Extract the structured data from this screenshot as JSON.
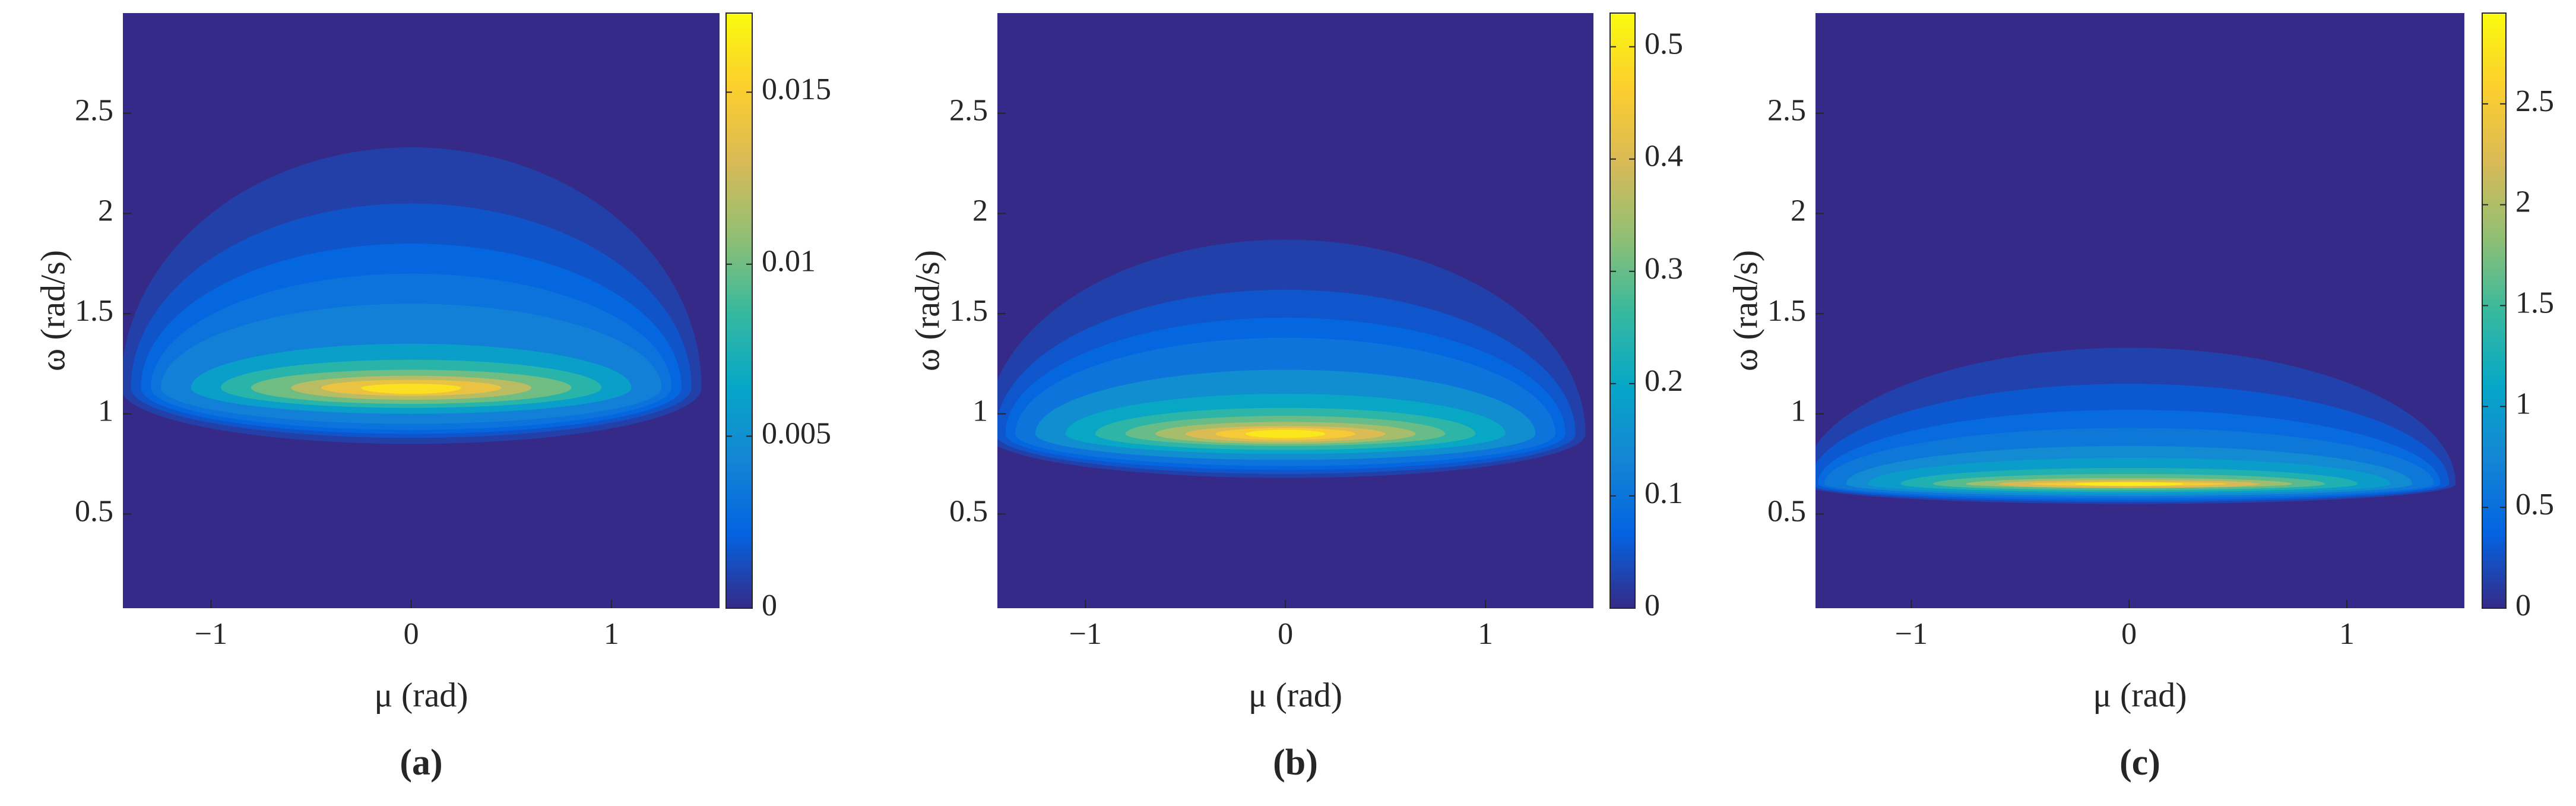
{
  "chart_data": [
    {
      "type": "contour",
      "colormap": "parula",
      "caption": "(a)",
      "x_label": "μ (rad)",
      "y_label": "ω (rad/s)",
      "xlim": [
        -1.44,
        1.54
      ],
      "xticks": [
        {
          "value": -1,
          "label": "−1"
        },
        0,
        1
      ],
      "ylim": [
        0.03,
        3
      ],
      "yticks": [
        0.5,
        1,
        1.5,
        2,
        2.5
      ],
      "clim": [
        0,
        0.0173
      ],
      "cticks": [
        0,
        0.005,
        0.01,
        0.015
      ],
      "peak_omega": 1.13,
      "levels": [
        {
          "value": 0.0008,
          "half_width": 1.45,
          "bottom": 0.85,
          "top": 2.33
        },
        {
          "value": 0.0016,
          "half_width": 1.4,
          "bottom": 0.88,
          "top": 2.05
        },
        {
          "value": 0.0024,
          "half_width": 1.35,
          "bottom": 0.9,
          "top": 1.85
        },
        {
          "value": 0.0032,
          "half_width": 1.3,
          "bottom": 0.92,
          "top": 1.7
        },
        {
          "value": 0.004,
          "half_width": 1.25,
          "bottom": 0.95,
          "top": 1.55
        },
        {
          "value": 0.006,
          "half_width": 1.1,
          "bottom": 1.0,
          "top": 1.35
        },
        {
          "value": 0.008,
          "half_width": 0.95,
          "bottom": 1.03,
          "top": 1.27
        },
        {
          "value": 0.01,
          "half_width": 0.8,
          "bottom": 1.05,
          "top": 1.22
        },
        {
          "value": 0.012,
          "half_width": 0.6,
          "bottom": 1.07,
          "top": 1.19
        },
        {
          "value": 0.014,
          "half_width": 0.45,
          "bottom": 1.09,
          "top": 1.17
        },
        {
          "value": 0.016,
          "half_width": 0.25,
          "bottom": 1.1,
          "top": 1.15
        }
      ]
    },
    {
      "type": "contour",
      "colormap": "parula",
      "caption": "(b)",
      "x_label": "μ (rad)",
      "y_label": "ω (rad/s)",
      "xlim": [
        -1.44,
        1.54
      ],
      "xticks": [
        {
          "value": -1,
          "label": "−1"
        },
        0,
        1
      ],
      "ylim": [
        0.03,
        3
      ],
      "yticks": [
        0.5,
        1,
        1.5,
        2,
        2.5
      ],
      "clim": [
        0,
        0.53
      ],
      "cticks": [
        0,
        0.1,
        0.2,
        0.3,
        0.4,
        0.5
      ],
      "peak_omega": 0.9,
      "levels": [
        {
          "value": 0.025,
          "half_width": 1.5,
          "bottom": 0.68,
          "top": 1.87
        },
        {
          "value": 0.05,
          "half_width": 1.45,
          "bottom": 0.7,
          "top": 1.62
        },
        {
          "value": 0.075,
          "half_width": 1.4,
          "bottom": 0.72,
          "top": 1.48
        },
        {
          "value": 0.1,
          "half_width": 1.35,
          "bottom": 0.74,
          "top": 1.38
        },
        {
          "value": 0.15,
          "half_width": 1.25,
          "bottom": 0.77,
          "top": 1.22
        },
        {
          "value": 0.2,
          "half_width": 1.1,
          "bottom": 0.8,
          "top": 1.1
        },
        {
          "value": 0.25,
          "half_width": 0.95,
          "bottom": 0.82,
          "top": 1.03
        },
        {
          "value": 0.3,
          "half_width": 0.8,
          "bottom": 0.84,
          "top": 0.99
        },
        {
          "value": 0.35,
          "half_width": 0.65,
          "bottom": 0.85,
          "top": 0.96
        },
        {
          "value": 0.4,
          "half_width": 0.5,
          "bottom": 0.86,
          "top": 0.94
        },
        {
          "value": 0.45,
          "half_width": 0.35,
          "bottom": 0.87,
          "top": 0.93
        },
        {
          "value": 0.5,
          "half_width": 0.2,
          "bottom": 0.88,
          "top": 0.92
        }
      ]
    },
    {
      "type": "contour",
      "colormap": "parula",
      "caption": "(c)",
      "x_label": "μ (rad)",
      "y_label": "ω (rad/s)",
      "xlim": [
        -1.44,
        1.54
      ],
      "xticks": [
        {
          "value": -1,
          "label": "−1"
        },
        0,
        1
      ],
      "ylim": [
        0.03,
        3
      ],
      "yticks": [
        0.5,
        1,
        1.5,
        2,
        2.5
      ],
      "clim": [
        0,
        2.95
      ],
      "cticks": [
        0,
        0.5,
        1,
        1.5,
        2,
        2.5
      ],
      "peak_omega": 0.65,
      "levels": [
        {
          "value": 0.15,
          "half_width": 1.5,
          "bottom": 0.55,
          "top": 1.33
        },
        {
          "value": 0.3,
          "half_width": 1.47,
          "bottom": 0.56,
          "top": 1.15
        },
        {
          "value": 0.45,
          "half_width": 1.43,
          "bottom": 0.57,
          "top": 1.02
        },
        {
          "value": 0.6,
          "half_width": 1.4,
          "bottom": 0.58,
          "top": 0.93
        },
        {
          "value": 0.8,
          "half_width": 1.3,
          "bottom": 0.59,
          "top": 0.84
        },
        {
          "value": 1.0,
          "half_width": 1.2,
          "bottom": 0.6,
          "top": 0.78
        },
        {
          "value": 1.3,
          "half_width": 1.05,
          "bottom": 0.61,
          "top": 0.73
        },
        {
          "value": 1.6,
          "half_width": 0.9,
          "bottom": 0.62,
          "top": 0.7
        },
        {
          "value": 1.9,
          "half_width": 0.75,
          "bottom": 0.63,
          "top": 0.68
        },
        {
          "value": 2.2,
          "half_width": 0.6,
          "bottom": 0.63,
          "top": 0.67
        },
        {
          "value": 2.5,
          "half_width": 0.45,
          "bottom": 0.64,
          "top": 0.66
        },
        {
          "value": 2.8,
          "half_width": 0.25,
          "bottom": 0.64,
          "top": 0.66
        }
      ]
    }
  ]
}
